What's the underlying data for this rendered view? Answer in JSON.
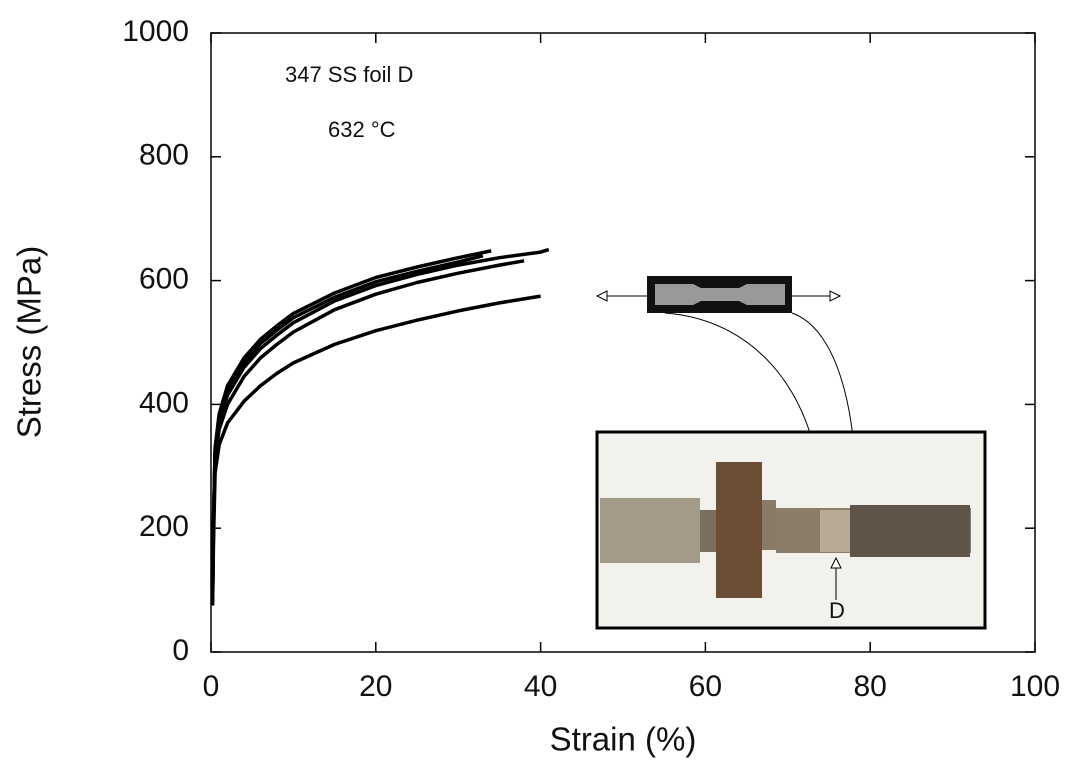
{
  "chart_data": {
    "type": "line",
    "xlabel": "Strain (%)",
    "ylabel": "Stress (MPa)",
    "annotations": [
      "347 SS foil D",
      "632 °C"
    ],
    "inset_label": "D",
    "xlim": [
      0,
      100
    ],
    "xticks": [
      0,
      20,
      40,
      60,
      80,
      100
    ],
    "ylim": [
      0,
      1000
    ],
    "yticks": [
      0,
      200,
      400,
      600,
      800,
      1000
    ],
    "series": [
      {
        "color": "#000000",
        "x": [
          0.2,
          0.3,
          0.5,
          1,
          2,
          4,
          6,
          8,
          10,
          15,
          20,
          25,
          30,
          35,
          40,
          41
        ],
        "values": [
          80,
          200,
          320,
          370,
          415,
          460,
          490,
          512,
          532,
          567,
          592,
          610,
          625,
          637,
          646,
          650
        ]
      },
      {
        "color": "#000000",
        "x": [
          0.2,
          0.3,
          0.5,
          1,
          2,
          4,
          6,
          8,
          10,
          15,
          20,
          25,
          30,
          34
        ],
        "values": [
          90,
          210,
          330,
          385,
          430,
          475,
          505,
          527,
          547,
          580,
          605,
          622,
          637,
          648
        ]
      },
      {
        "color": "#000000",
        "x": [
          0.2,
          0.3,
          0.5,
          1,
          2,
          4,
          6,
          8,
          10,
          15,
          20,
          25,
          30,
          35,
          38
        ],
        "values": [
          85,
          205,
          315,
          360,
          400,
          445,
          475,
          497,
          517,
          553,
          578,
          597,
          612,
          625,
          632
        ]
      },
      {
        "color": "#000000",
        "x": [
          0.2,
          0.3,
          0.5,
          1,
          2,
          4,
          6,
          8,
          10,
          15,
          20,
          25,
          30,
          33
        ],
        "values": [
          95,
          215,
          325,
          378,
          422,
          468,
          498,
          520,
          540,
          573,
          598,
          615,
          630,
          640
        ]
      },
      {
        "color": "#000000",
        "x": [
          0.2,
          0.3,
          0.5,
          1,
          2,
          4,
          6,
          8,
          10,
          15,
          20,
          25,
          30,
          35,
          40
        ],
        "values": [
          75,
          180,
          290,
          335,
          370,
          405,
          430,
          450,
          467,
          497,
          519,
          536,
          551,
          564,
          575
        ]
      }
    ]
  }
}
